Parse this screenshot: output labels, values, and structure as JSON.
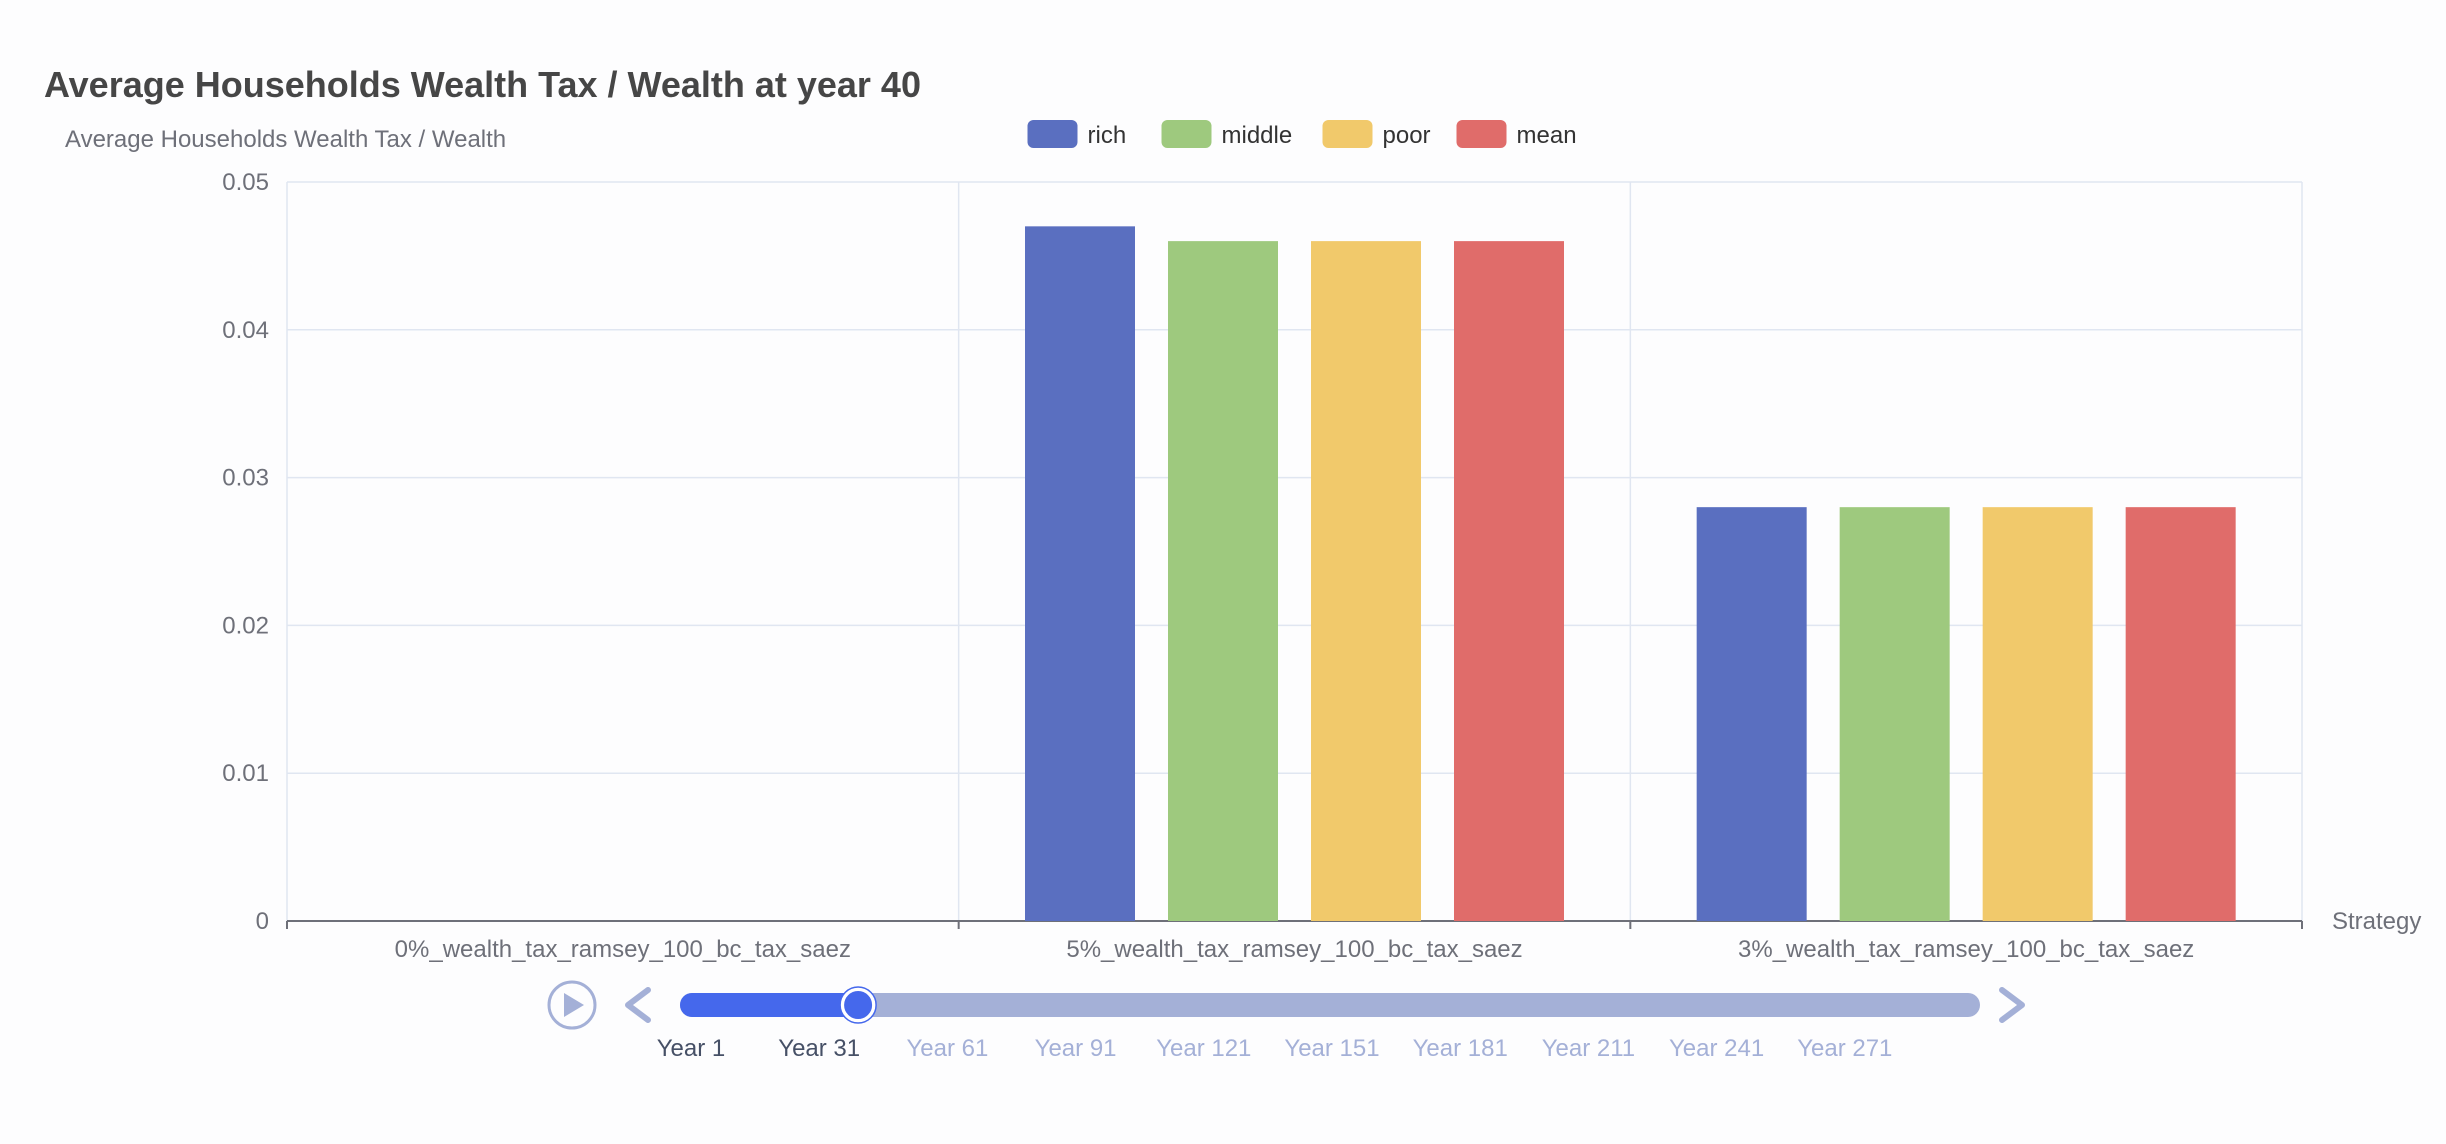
{
  "title": "Average Households Wealth Tax / Wealth at year 40",
  "colors": {
    "rich": "#5a6fc0",
    "middle": "#9ec97e",
    "poor": "#f1c96b",
    "mean": "#e06c6a",
    "axis_text": "#6e7079",
    "grid": "#e0e6f1",
    "timeline_active": "#4568ec",
    "timeline_track": "#a4b0d7"
  },
  "chart_data": {
    "type": "bar",
    "ylabel": "Average Households Wealth Tax / Wealth",
    "xlabel": "Strategy",
    "categories": [
      "0%_wealth_tax_ramsey_100_bc_tax_saez",
      "5%_wealth_tax_ramsey_100_bc_tax_saez",
      "3%_wealth_tax_ramsey_100_bc_tax_saez"
    ],
    "series": [
      {
        "name": "rich",
        "values": [
          0,
          0.047,
          0.028
        ]
      },
      {
        "name": "middle",
        "values": [
          0,
          0.046,
          0.028
        ]
      },
      {
        "name": "poor",
        "values": [
          0,
          0.046,
          0.028
        ]
      },
      {
        "name": "mean",
        "values": [
          0,
          0.046,
          0.028
        ]
      }
    ],
    "ylim": [
      0,
      0.05
    ],
    "yticks": [
      "0",
      "0.01",
      "0.02",
      "0.03",
      "0.04",
      "0.05"
    ],
    "grid": true,
    "legend_position": "top-center"
  },
  "timeline": {
    "labels": [
      "Year 1",
      "Year 31",
      "Year 61",
      "Year 91",
      "Year 121",
      "Year 151",
      "Year 181",
      "Year 211",
      "Year 241",
      "Year 271"
    ],
    "current_index": 1,
    "progress_fraction": 0.137,
    "play_icon": "play-icon",
    "prev_icon": "chevron-left-icon",
    "next_icon": "chevron-right-icon"
  }
}
